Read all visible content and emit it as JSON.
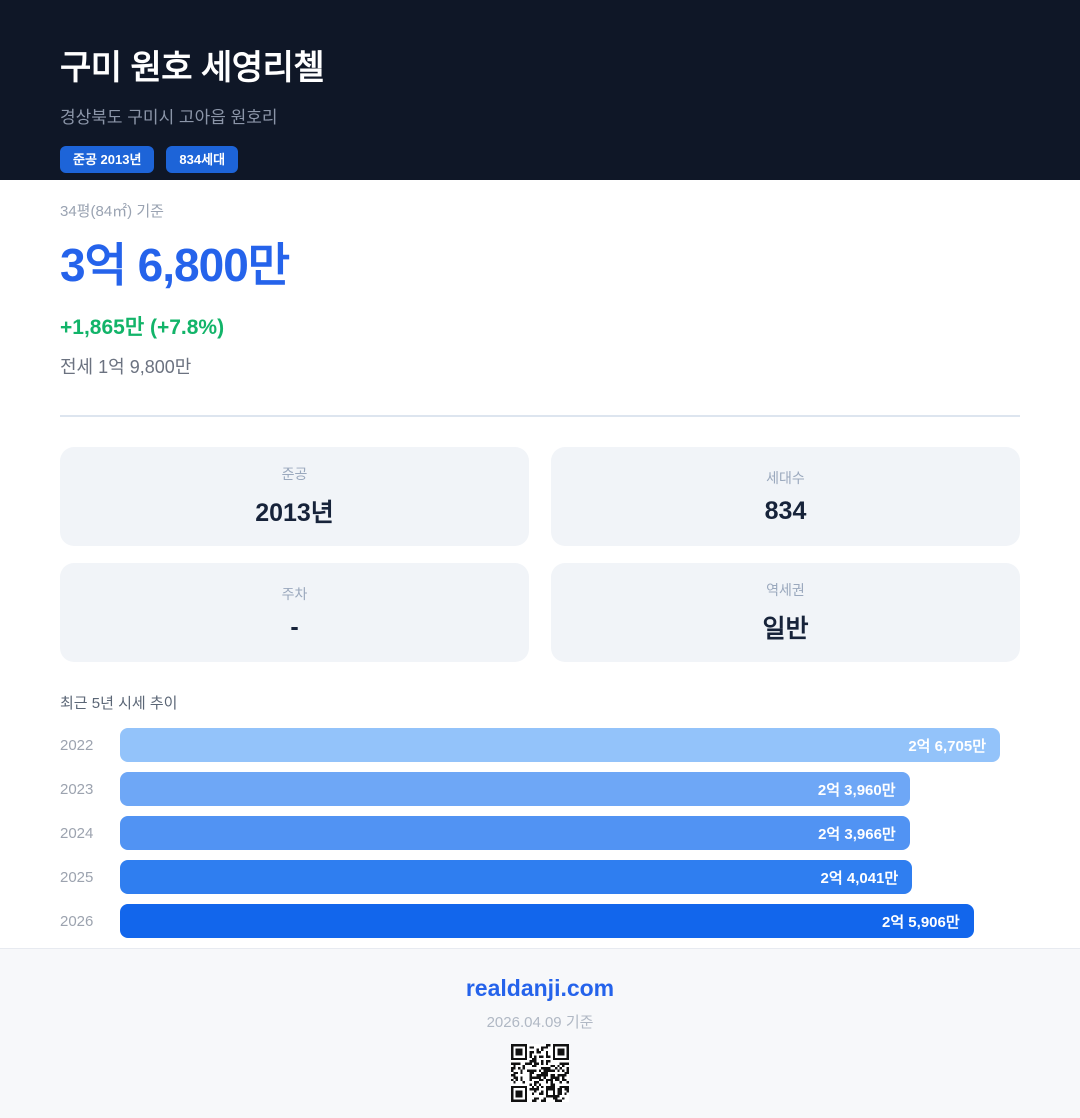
{
  "header": {
    "title": "구미 원호 세영리첼",
    "address": "경상북도 구미시 고아읍 원호리",
    "badges": [
      {
        "label": "준공 2013년"
      },
      {
        "label": "834세대"
      }
    ]
  },
  "price": {
    "basis": "34평(84㎡) 기준",
    "current": "3억 6,800만",
    "change": "+1,865만 (+7.8%)",
    "jeonse": "전세 1억 9,800만"
  },
  "info_cards": [
    {
      "label": "준공",
      "value": "2013년"
    },
    {
      "label": "세대수",
      "value": "834"
    },
    {
      "label": "주차",
      "value": "-"
    },
    {
      "label": "역세권",
      "value": "일반"
    }
  ],
  "chart_data": {
    "type": "bar",
    "orientation": "horizontal",
    "title": "최근 5년 시세 추이",
    "categories": [
      "2022",
      "2023",
      "2024",
      "2025",
      "2026"
    ],
    "values": [
      26705,
      23960,
      23966,
      24041,
      25906
    ],
    "value_labels": [
      "2억 6,705만",
      "2억 3,960만",
      "2억 3,966만",
      "2억 4,041만",
      "2억 5,906만"
    ],
    "bar_colors": [
      "#93c3fa",
      "#6ea7f6",
      "#5193f3",
      "#2f7ef0",
      "#1266ec"
    ],
    "xlim": [
      0,
      26705
    ],
    "unit": "만원",
    "grid": false,
    "legend": false
  },
  "footer": {
    "site": "realdanji.com",
    "date_note": "2026.04.09 기준",
    "qr": "qr-code"
  },
  "theme": {
    "header-bg": "#0f1727",
    "badge-blue": "#1d64d8",
    "accent-blue": "#2563eb",
    "positive-green": "#12b469",
    "card-bg": "#f1f4f8",
    "card-label": "#9aa8bd",
    "card-value": "#17233a",
    "divider": "#dde5ef",
    "footer-bg": "#f7f8fa",
    "footer-border": "#e7eaf0"
  }
}
